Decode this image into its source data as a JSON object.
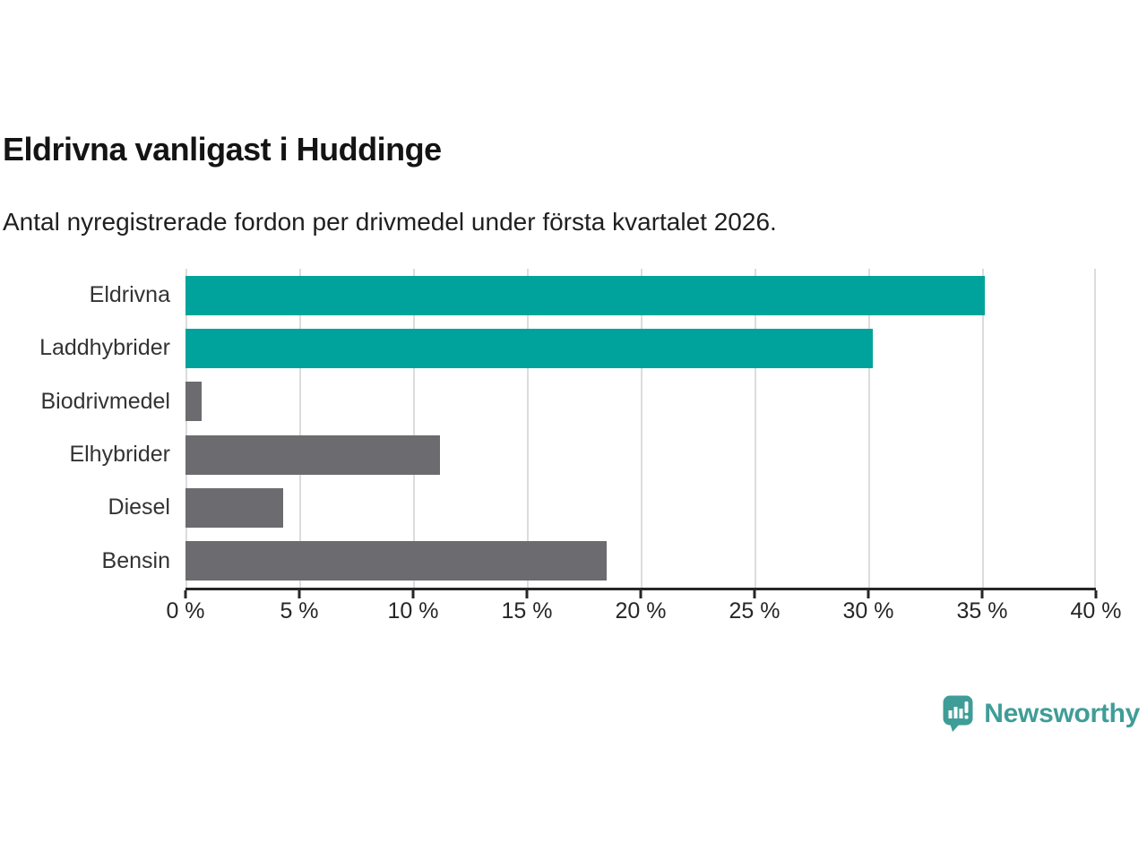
{
  "header": {
    "title": "Eldrivna vanligast i Huddinge",
    "subtitle": "Antal nyregistrerade fordon per drivmedel under första kvartalet 2026."
  },
  "chart_data": {
    "type": "bar",
    "orientation": "horizontal",
    "title": "Eldrivna vanligast i Huddinge",
    "subtitle": "Antal nyregistrerade fordon per drivmedel under första kvartalet 2026.",
    "categories": [
      "Eldrivna",
      "Laddhybrider",
      "Biodrivmedel",
      "Elhybrider",
      "Diesel",
      "Bensin"
    ],
    "values": [
      35.1,
      30.2,
      0.7,
      11.2,
      4.3,
      18.5
    ],
    "unit": "%",
    "bar_colors": [
      "#00a39b",
      "#00a39b",
      "#6b6b70",
      "#6b6b70",
      "#6b6b70",
      "#6b6b70"
    ],
    "xlim": [
      0,
      40
    ],
    "x_ticks": [
      "0 %",
      "5 %",
      "10 %",
      "15 %",
      "20 %",
      "25 %",
      "30 %",
      "35 %",
      "40 %"
    ],
    "xlabel": "",
    "ylabel": "",
    "grid": "vertical-light-gray",
    "legend": "none"
  },
  "branding": {
    "logo_text": "Newsworthy",
    "logo_icon": "newsworthy-speech-bubble-bar-chart-icon",
    "logo_color": "#3f9d97"
  },
  "colors": {
    "background": "#ffffff",
    "teal_bar": "#00a39b",
    "gray_bar": "#6b6b70",
    "axis": "#262626",
    "gridline": "#dcdcdc",
    "title_text": "#141414",
    "label_text": "#333333"
  }
}
